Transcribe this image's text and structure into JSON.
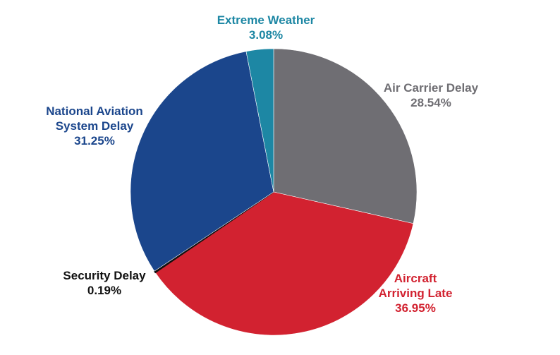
{
  "chart_data": {
    "type": "pie",
    "title": "",
    "start_angle_deg": 0,
    "direction": "clockwise",
    "slices": [
      {
        "id": "air-carrier",
        "name": "Air Carrier Delay",
        "label_lines": [
          "Air Carrier Delay",
          "28.54%"
        ],
        "value": 28.54,
        "color": "#6f6e73",
        "label_color": "#6f6e73"
      },
      {
        "id": "aircraft-late",
        "name": "Aircraft Arriving Late",
        "label_lines": [
          "Aircraft",
          "Arriving Late",
          "36.95%"
        ],
        "value": 36.95,
        "color": "#d22230",
        "label_color": "#d22230"
      },
      {
        "id": "security",
        "name": "Security Delay",
        "label_lines": [
          "Security Delay",
          "0.19%"
        ],
        "value": 0.19,
        "color": "#111111",
        "label_color": "#111111"
      },
      {
        "id": "nas",
        "name": "National Aviation System Delay",
        "label_lines": [
          "National Aviation",
          "System Delay",
          "31.25%"
        ],
        "value": 31.25,
        "color": "#1b468c",
        "label_color": "#1b468c"
      },
      {
        "id": "weather",
        "name": "Extreme Weather",
        "label_lines": [
          "Extreme Weather",
          "3.08%"
        ],
        "value": 3.08,
        "color": "#1d87a4",
        "label_color": "#1d87a4"
      }
    ]
  }
}
